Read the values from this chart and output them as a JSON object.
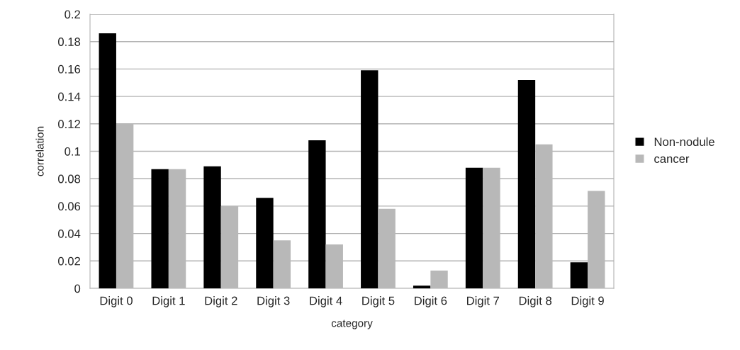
{
  "chart_data": {
    "type": "bar",
    "xlabel": "category",
    "ylabel": "correlation",
    "categories": [
      "Digit 0",
      "Digit 1",
      "Digit 2",
      "Digit 3",
      "Digit 4",
      "Digit 5",
      "Digit 6",
      "Digit 7",
      "Digit 8",
      "Digit 9"
    ],
    "series": [
      {
        "name": "Non-nodule",
        "color": "#000000",
        "values": [
          0.186,
          0.087,
          0.089,
          0.066,
          0.108,
          0.159,
          0.002,
          0.088,
          0.152,
          0.019
        ]
      },
      {
        "name": "cancer",
        "color": "#b8b8b8",
        "values": [
          0.12,
          0.087,
          0.06,
          0.035,
          0.032,
          0.058,
          0.013,
          0.088,
          0.105,
          0.071
        ]
      }
    ],
    "ylim": [
      0,
      0.2
    ],
    "yticks": [
      0,
      0.02,
      0.04,
      0.06,
      0.08,
      0.1,
      0.12,
      0.14,
      0.16,
      0.18,
      0.2
    ],
    "grid": "y",
    "legend": "right"
  }
}
